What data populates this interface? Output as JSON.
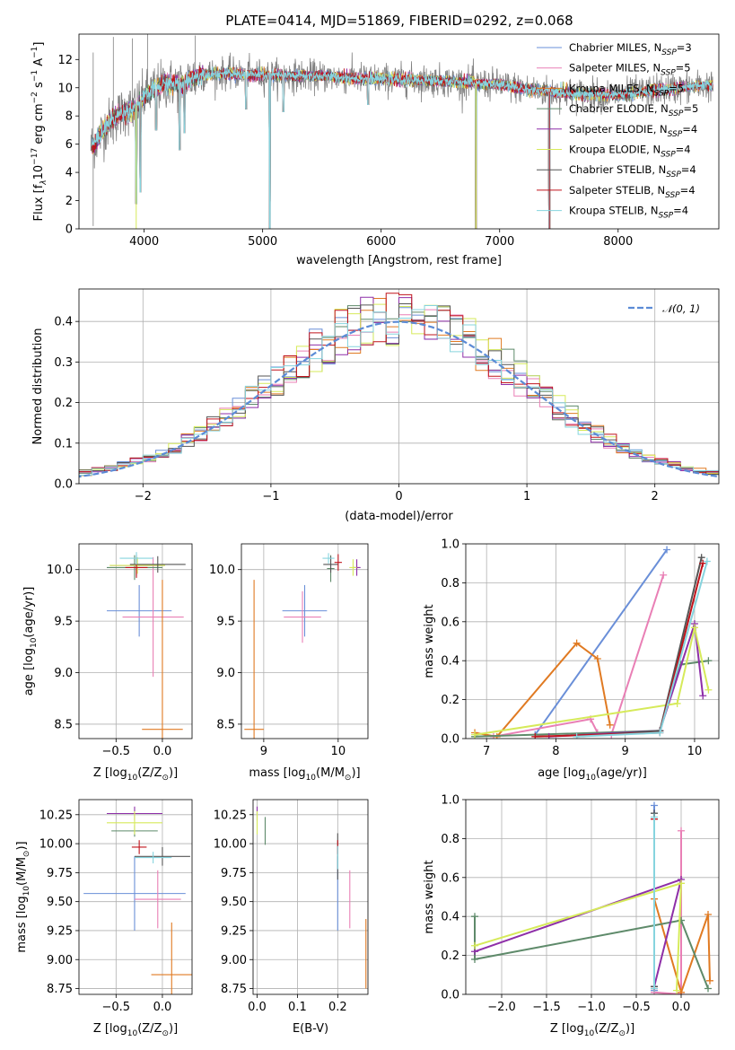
{
  "figure_title": "PLATE=0414, MJD=51869, FIBERID=0292, z=0.068",
  "colors": {
    "Chabrier MILES": "#6a8fd8",
    "Salpeter MILES": "#e97fb5",
    "Kroupa MILES": "#e07a22",
    "Chabrier ELODIE": "#5e8a6a",
    "Salpeter ELODIE": "#8e2fa8",
    "Kroupa ELODIE": "#d6ea5a",
    "Chabrier STELIB": "#555555",
    "Salpeter STELIB": "#c0141c",
    "Kroupa STELIB": "#86d4de",
    "data": "#808080",
    "gaussian": "#5b8bd6",
    "grid": "#b0b0b0"
  },
  "chart_data": [
    {
      "id": "spectrum",
      "type": "line",
      "title": "PLATE=0414, MJD=51869, FIBERID=0292, z=0.068",
      "xlabel": "wavelength [Angstrom, rest frame]",
      "ylabel_parts": [
        "Flux [f",
        "λ",
        "10",
        "−17",
        " erg cm",
        "−2",
        " s",
        "−1",
        " A",
        "−1",
        "]"
      ],
      "xlim": [
        3450,
        8850
      ],
      "ylim": [
        0,
        13.8
      ],
      "xticks": [
        4000,
        5000,
        6000,
        7000,
        8000
      ],
      "yticks": [
        0,
        2,
        4,
        6,
        8,
        10,
        12
      ],
      "grid": false,
      "legend_position": "right",
      "continuum_x": [
        3550,
        3600,
        3700,
        3800,
        3900,
        4000,
        4100,
        4200,
        4300,
        4400,
        4500,
        4700,
        5000,
        5500,
        6000,
        6500,
        7000,
        7300,
        7600,
        8000,
        8400,
        8800
      ],
      "continuum_y": [
        5.8,
        6.3,
        7.5,
        8.2,
        8.5,
        9.3,
        10.0,
        10.3,
        10.2,
        10.7,
        11.0,
        11.0,
        10.9,
        10.8,
        10.6,
        10.5,
        10.2,
        9.8,
        9.6,
        9.5,
        9.9,
        10.2
      ],
      "absorption_lines": [
        {
          "x": 3933,
          "y": 1.8
        },
        {
          "x": 3968,
          "y": 2.6
        },
        {
          "x": 4101,
          "y": 7.0
        },
        {
          "x": 4300,
          "y": 5.6
        },
        {
          "x": 4340,
          "y": 6.8
        },
        {
          "x": 4861,
          "y": 8.5
        },
        {
          "x": 5060,
          "y": 0
        },
        {
          "x": 5175,
          "y": 8.3
        },
        {
          "x": 5890,
          "y": 8.8
        },
        {
          "x": 6800,
          "y": 0
        },
        {
          "x": 7420,
          "y": 0
        }
      ],
      "legend": [
        {
          "label": "Chabrier MILES, N",
          "sub": "SSP",
          "value": "=3",
          "color": "Chabrier MILES"
        },
        {
          "label": "Salpeter MILES, N",
          "sub": "SSP",
          "value": "=5",
          "color": "Salpeter MILES"
        },
        {
          "label": "Kroupa MILES, N",
          "sub": "SSP",
          "value": "=5",
          "color": "Kroupa MILES"
        },
        {
          "label": "Chabrier ELODIE, N",
          "sub": "SSP",
          "value": "=5",
          "color": "Chabrier ELODIE"
        },
        {
          "label": "Salpeter ELODIE, N",
          "sub": "SSP",
          "value": "=4",
          "color": "Salpeter ELODIE"
        },
        {
          "label": "Kroupa ELODIE, N",
          "sub": "SSP",
          "value": "=4",
          "color": "Kroupa ELODIE"
        },
        {
          "label": "Chabrier STELIB, N",
          "sub": "SSP",
          "value": "=4",
          "color": "Chabrier STELIB"
        },
        {
          "label": "Salpeter STELIB, N",
          "sub": "SSP",
          "value": "=4",
          "color": "Salpeter STELIB"
        },
        {
          "label": "Kroupa STELIB, N",
          "sub": "SSP",
          "value": "=4",
          "color": "Kroupa STELIB"
        }
      ]
    },
    {
      "id": "residuals",
      "type": "histogram",
      "xlabel": "(data-model)/error",
      "ylabel": "Normed distribution",
      "xlim": [
        -2.5,
        2.5
      ],
      "ylim": [
        0,
        0.48
      ],
      "xticks": [
        -2,
        -1,
        0,
        1,
        2
      ],
      "yticks": [
        0.0,
        0.1,
        0.2,
        0.3,
        0.4
      ],
      "grid": true,
      "legend_position": "top-right",
      "legend": "𝒩(0, 1)",
      "gaussian": {
        "mu": 0,
        "sigma": 1
      },
      "bin_width": 0.1
    },
    {
      "id": "age_vs_Z",
      "type": "errorbar",
      "xlabel": "Z [log",
      "xlabel_tail": "(Z/Z",
      "xlabel_end": ")]",
      "ylabel": "age  [log",
      "ylabel_tail": "(age/yr)]",
      "xlim": [
        -0.9,
        0.32
      ],
      "ylim": [
        8.36,
        10.25
      ],
      "xticks": [
        -0.5,
        0.0
      ],
      "xtick_labels": [
        "−0.5",
        "0.0"
      ],
      "yticks": [
        8.5,
        9.0,
        9.5,
        10.0
      ],
      "grid": true,
      "points": [
        {
          "series": "Chabrier MILES",
          "x": -0.25,
          "y": 9.6,
          "xerr": 0.35,
          "yerr": 0.25
        },
        {
          "series": "Salpeter MILES",
          "x": -0.1,
          "y": 9.54,
          "xerr": 0.33,
          "yerr": 0.58
        },
        {
          "series": "Kroupa MILES",
          "x": 0.0,
          "y": 8.45,
          "xerr": 0.22,
          "yerr": 1.45
        },
        {
          "series": "Chabrier ELODIE",
          "x": -0.3,
          "y": 10.02,
          "xerr": 0.3,
          "yerr": 0.12
        },
        {
          "series": "Salpeter ELODIE",
          "x": -0.28,
          "y": 10.04,
          "xerr": 0.28,
          "yerr": 0.1
        },
        {
          "series": "Kroupa ELODIE",
          "x": -0.27,
          "y": 10.04,
          "xerr": 0.3,
          "yerr": 0.08
        },
        {
          "series": "Chabrier STELIB",
          "x": -0.05,
          "y": 10.05,
          "xerr": 0.3,
          "yerr": 0.08
        },
        {
          "series": "Salpeter STELIB",
          "x": -0.28,
          "y": 10.02,
          "xerr": 0.12,
          "yerr": 0.1
        },
        {
          "series": "Kroupa STELIB",
          "x": -0.28,
          "y": 10.11,
          "xerr": 0.18,
          "yerr": 0.06
        }
      ]
    },
    {
      "id": "age_vs_mass",
      "type": "errorbar",
      "xlabel": "mass [log",
      "xlabel_tail": "(M/M",
      "xlabel_end": ")]",
      "xlim": [
        8.7,
        10.4
      ],
      "ylim": [
        8.36,
        10.25
      ],
      "xticks": [
        9,
        10
      ],
      "yticks": [
        8.5,
        9.0,
        9.5,
        10.0
      ],
      "grid": true,
      "points": [
        {
          "series": "Chabrier MILES",
          "x": 9.55,
          "y": 9.6,
          "xerr": 0.3,
          "yerr": 0.25
        },
        {
          "series": "Salpeter MILES",
          "x": 9.52,
          "y": 9.54,
          "xerr": 0.25,
          "yerr": 0.25
        },
        {
          "series": "Kroupa MILES",
          "x": 8.87,
          "y": 8.45,
          "xerr": 0.13,
          "yerr": 1.45
        },
        {
          "series": "Chabrier ELODIE",
          "x": 9.9,
          "y": 10.01,
          "xerr": 0.05,
          "yerr": 0.13
        },
        {
          "series": "Salpeter ELODIE",
          "x": 10.25,
          "y": 10.02,
          "xerr": 0.05,
          "yerr": 0.08
        },
        {
          "series": "Kroupa ELODIE",
          "x": 10.2,
          "y": 10.02,
          "xerr": 0.05,
          "yerr": 0.08
        },
        {
          "series": "Chabrier STELIB",
          "x": 9.9,
          "y": 10.05,
          "xerr": 0.1,
          "yerr": 0.08
        },
        {
          "series": "Salpeter STELIB",
          "x": 10.0,
          "y": 10.07,
          "xerr": 0.05,
          "yerr": 0.08
        },
        {
          "series": "Kroupa STELIB",
          "x": 9.87,
          "y": 10.11,
          "xerr": 0.08,
          "yerr": 0.05
        }
      ]
    },
    {
      "id": "weight_vs_age",
      "type": "line",
      "xlabel": "age  [log",
      "xlabel_tail": "(age/yr)]",
      "ylabel": "mass weight",
      "xlim": [
        6.7,
        10.35
      ],
      "ylim": [
        0,
        1.0
      ],
      "xticks": [
        7,
        8,
        9,
        10
      ],
      "yticks": [
        0.0,
        0.2,
        0.4,
        0.6,
        0.8,
        1.0
      ],
      "grid": true,
      "series": [
        {
          "name": "Chabrier MILES",
          "x": [
            7.7,
            9.6
          ],
          "y": [
            0.02,
            0.97
          ]
        },
        {
          "name": "Salpeter MILES",
          "x": [
            7.1,
            8.5,
            8.6,
            8.8,
            9.55
          ],
          "y": [
            0.01,
            0.1,
            0.03,
            0.02,
            0.84
          ]
        },
        {
          "name": "Kroupa MILES",
          "x": [
            6.83,
            7.15,
            8.3,
            8.6,
            8.78
          ],
          "y": [
            0.03,
            0.01,
            0.49,
            0.41,
            0.07
          ]
        },
        {
          "name": "Chabrier ELODIE",
          "x": [
            6.83,
            9.5,
            9.8,
            10.2
          ],
          "y": [
            0.01,
            0.04,
            0.38,
            0.4
          ]
        },
        {
          "name": "Salpeter ELODIE",
          "x": [
            7.9,
            9.5,
            10.0,
            10.12
          ],
          "y": [
            0.01,
            0.04,
            0.59,
            0.22
          ]
        },
        {
          "name": "Kroupa ELODIE",
          "x": [
            6.83,
            9.75,
            10.0,
            10.2
          ],
          "y": [
            0.02,
            0.18,
            0.57,
            0.25
          ]
        },
        {
          "name": "Chabrier STELIB",
          "x": [
            8.3,
            9.5,
            10.1
          ],
          "y": [
            0.01,
            0.04,
            0.93
          ]
        },
        {
          "name": "Salpeter STELIB",
          "x": [
            7.7,
            9.5,
            10.12
          ],
          "y": [
            0.01,
            0.03,
            0.9
          ]
        },
        {
          "name": "Kroupa STELIB",
          "x": [
            8.3,
            9.5,
            10.18
          ],
          "y": [
            0.01,
            0.03,
            0.91
          ]
        }
      ]
    },
    {
      "id": "mass_vs_Z",
      "type": "errorbar",
      "xlabel": "Z [log",
      "xlabel_tail": "(Z/Z",
      "xlabel_end": ")]",
      "ylabel": "mass [log",
      "ylabel_tail": "(M/M",
      "ylabel_end": ")]",
      "xlim": [
        -0.9,
        0.32
      ],
      "ylim": [
        8.7,
        10.38
      ],
      "xticks": [
        -0.5,
        0.0
      ],
      "xtick_labels": [
        "−0.5",
        "0.0"
      ],
      "yticks": [
        8.75,
        9.0,
        9.25,
        9.5,
        9.75,
        10.0,
        10.25
      ],
      "grid": true,
      "points": [
        {
          "series": "Chabrier MILES",
          "x": -0.3,
          "y": 9.57,
          "xerr": 0.55,
          "yerr": 0.32
        },
        {
          "series": "Salpeter MILES",
          "x": -0.05,
          "y": 9.52,
          "xerr": 0.25,
          "yerr": 0.25
        },
        {
          "series": "Kroupa MILES",
          "x": 0.1,
          "y": 8.87,
          "xerr": 0.22,
          "yerr": 0.45
        },
        {
          "series": "Chabrier ELODIE",
          "x": -0.3,
          "y": 10.11,
          "xerr": 0.25,
          "yerr": 0.05
        },
        {
          "series": "Salpeter ELODIE",
          "x": -0.3,
          "y": 10.26,
          "xerr": 0.3,
          "yerr": 0.06
        },
        {
          "series": "Kroupa ELODIE",
          "x": -0.3,
          "y": 10.18,
          "xerr": 0.3,
          "yerr": 0.1
        },
        {
          "series": "Chabrier STELIB",
          "x": 0.0,
          "y": 9.89,
          "xerr": 0.3,
          "yerr": 0.08
        },
        {
          "series": "Salpeter STELIB",
          "x": -0.25,
          "y": 9.97,
          "xerr": 0.08,
          "yerr": 0.06
        },
        {
          "series": "Kroupa STELIB",
          "x": -0.1,
          "y": 9.88,
          "xerr": 0.2,
          "yerr": 0.05
        }
      ]
    },
    {
      "id": "mass_vs_ebv",
      "type": "errorbar",
      "xlabel": "E(B-V)",
      "xlim": [
        -0.01,
        0.275
      ],
      "ylim": [
        8.7,
        10.38
      ],
      "xticks": [
        0.0,
        0.1,
        0.2
      ],
      "yticks": [
        8.75,
        9.0,
        9.25,
        9.5,
        9.75,
        10.0,
        10.25
      ],
      "grid": true,
      "points": [
        {
          "series": "Chabrier MILES",
          "x": 0.2,
          "y": 9.57,
          "xerr": 0,
          "yerr": 0.32
        },
        {
          "series": "Salpeter MILES",
          "x": 0.23,
          "y": 9.52,
          "xerr": 0,
          "yerr": 0.25
        },
        {
          "series": "Kroupa MILES",
          "x": 0.27,
          "y": 9.05,
          "xerr": 0,
          "yerr": 0.3
        },
        {
          "series": "Chabrier ELODIE",
          "x": 0.02,
          "y": 10.11,
          "xerr": 0,
          "yerr": 0.12
        },
        {
          "series": "Salpeter ELODIE",
          "x": 0.0,
          "y": 10.26,
          "xerr": 0,
          "yerr": 0.06
        },
        {
          "series": "Kroupa ELODIE",
          "x": 0.0,
          "y": 10.18,
          "xerr": 0,
          "yerr": 0.1
        },
        {
          "series": "Chabrier STELIB",
          "x": 0.2,
          "y": 9.89,
          "xerr": 0,
          "yerr": 0.2
        },
        {
          "series": "Salpeter STELIB",
          "x": 0.2,
          "y": 9.97,
          "xerr": 0,
          "yerr": 0.06
        },
        {
          "series": "Kroupa STELIB",
          "x": 0.2,
          "y": 9.88,
          "xerr": 0,
          "yerr": 0.1
        }
      ]
    },
    {
      "id": "weight_vs_Z",
      "type": "line",
      "xlabel": "Z [log",
      "xlabel_tail": "(Z/Z",
      "xlabel_end": ")]",
      "ylabel": "mass weight",
      "xlim": [
        -2.4,
        0.42
      ],
      "ylim": [
        0,
        1.0
      ],
      "xticks": [
        -2.0,
        -1.5,
        -1.0,
        -0.5,
        0.0
      ],
      "xtick_labels": [
        "−2.0",
        "−1.5",
        "−1.0",
        "−0.5",
        "0.0"
      ],
      "yticks": [
        0.0,
        0.2,
        0.4,
        0.6,
        0.8,
        1.0
      ],
      "grid": true,
      "series": [
        {
          "name": "Chabrier MILES",
          "x": [
            -0.3,
            -0.3
          ],
          "y": [
            0.02,
            0.97
          ]
        },
        {
          "name": "Salpeter MILES",
          "x": [
            -0.3,
            0.0,
            0.0
          ],
          "y": [
            0.01,
            0.0,
            0.84
          ]
        },
        {
          "name": "Kroupa MILES",
          "x": [
            -0.3,
            0.0,
            0.3,
            0.32
          ],
          "y": [
            0.49,
            0.01,
            0.41,
            0.07
          ]
        },
        {
          "name": "Chabrier ELODIE",
          "x": [
            -2.3,
            -2.3,
            0.0,
            0.3
          ],
          "y": [
            0.4,
            0.18,
            0.38,
            0.03
          ]
        },
        {
          "name": "Salpeter ELODIE",
          "x": [
            -2.3,
            0.0,
            -0.3
          ],
          "y": [
            0.22,
            0.59,
            0.04
          ]
        },
        {
          "name": "Kroupa ELODIE",
          "x": [
            -2.3,
            0.0,
            -0.05
          ],
          "y": [
            0.25,
            0.57,
            0.02
          ]
        },
        {
          "name": "Chabrier STELIB",
          "x": [
            -0.3,
            -0.3
          ],
          "y": [
            0.04,
            0.93
          ]
        },
        {
          "name": "Salpeter STELIB",
          "x": [
            -0.3,
            -0.3
          ],
          "y": [
            0.03,
            0.9
          ]
        },
        {
          "name": "Kroupa STELIB",
          "x": [
            -0.3,
            -0.3
          ],
          "y": [
            0.03,
            0.91
          ]
        }
      ]
    }
  ]
}
